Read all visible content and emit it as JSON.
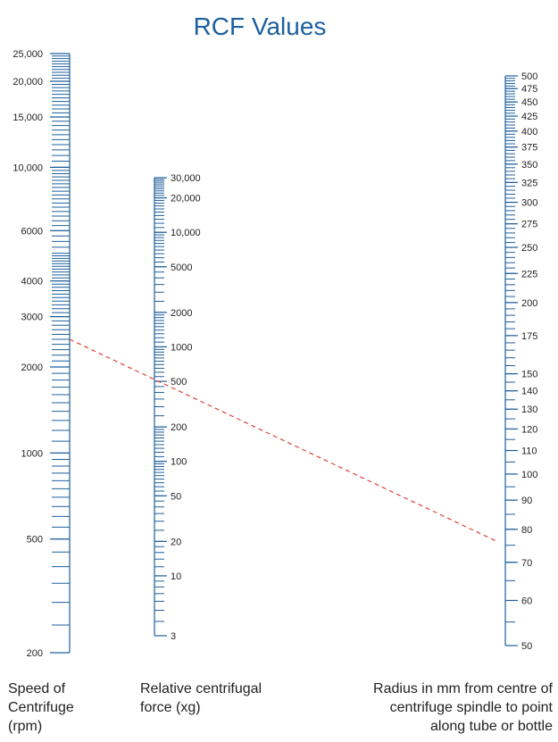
{
  "title": "RCF Values",
  "colors": {
    "scale": "#1c5f9e",
    "example_line": "#e0403a",
    "text": "#222222"
  },
  "scales": {
    "speed": {
      "caption_lines": [
        "Speed of",
        "Centrifuge",
        "(rpm)"
      ],
      "unit": "rpm",
      "range": [
        200,
        25000
      ],
      "labels": [
        "25,000",
        "20,000",
        "15,000",
        "10,000",
        "6000",
        "4000",
        "3000",
        "2000",
        "1000",
        "500",
        "200"
      ]
    },
    "rcf": {
      "caption_lines": [
        "Relative centrifugal",
        "force (xg)"
      ],
      "unit": "xg",
      "range": [
        3,
        30000
      ],
      "labels": [
        "30,000",
        "20,000",
        "10,000",
        "5000",
        "2000",
        "1000",
        "500",
        "200",
        "100",
        "50",
        "20",
        "10",
        "3"
      ]
    },
    "radius": {
      "caption_lines": [
        "Radius in mm from centre of",
        "centrifuge spindle to point",
        "along tube or bottle"
      ],
      "unit": "mm",
      "range": [
        50,
        500
      ],
      "labels": [
        "500",
        "475",
        "450",
        "425",
        "400",
        "375",
        "350",
        "325",
        "300",
        "275",
        "250",
        "225",
        "200",
        "175",
        "150",
        "140",
        "130",
        "120",
        "110",
        "100",
        "90",
        "80",
        "70",
        "60",
        "50"
      ]
    }
  },
  "example_line": {
    "speed_rpm": 2500,
    "rcf_xg": 530,
    "radius_mm": 76
  }
}
